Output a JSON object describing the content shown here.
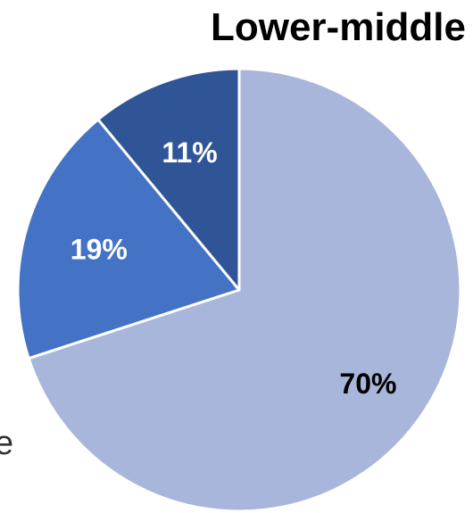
{
  "chart_data": {
    "type": "pie",
    "title": "Lower-middle",
    "slices": [
      {
        "label": "70%",
        "value": 70,
        "color": "#a9b6db",
        "label_color": "#000000"
      },
      {
        "label": "19%",
        "value": 19,
        "color": "#4472c4",
        "label_color": "#ffffff"
      },
      {
        "label": "11%",
        "value": 11,
        "color": "#2f5597",
        "label_color": "#ffffff"
      }
    ],
    "start_angle_deg": 0,
    "direction": "clockwise",
    "edge_fragment_text": "e"
  }
}
